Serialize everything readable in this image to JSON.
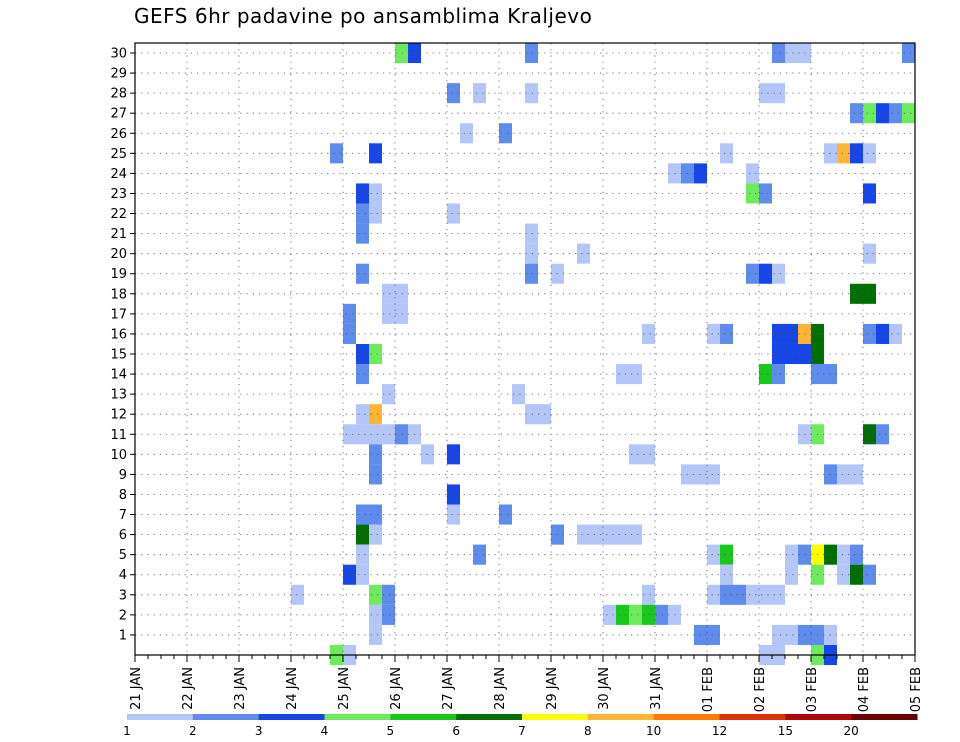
{
  "chart_data": {
    "type": "heatmap",
    "title": "GEFS 6hr padavine po ansamblima Kraljevo",
    "xlabel": "",
    "ylabel": "",
    "x_ticks": [
      "21 JAN",
      "22 JAN",
      "23 JAN",
      "24 JAN",
      "25 JAN",
      "26 JAN",
      "27 JAN",
      "28 JAN",
      "29 JAN",
      "30 JAN",
      "31 JAN",
      "01 FEB",
      "02 FEB",
      "03 FEB",
      "04 FEB",
      "05 FEB"
    ],
    "y_ticks": [
      1,
      2,
      3,
      4,
      5,
      6,
      7,
      8,
      9,
      10,
      11,
      12,
      13,
      14,
      15,
      16,
      17,
      18,
      19,
      20,
      21,
      22,
      23,
      24,
      25,
      26,
      27,
      28,
      29,
      30
    ],
    "ylim": [
      0,
      30
    ],
    "time_steps_per_day": 4,
    "grid": "dotted",
    "colorbar": {
      "labels": [
        "1",
        "2",
        "3",
        "4",
        "5",
        "6",
        "7",
        "8",
        "10",
        "12",
        "15",
        "20"
      ],
      "colors": [
        "#b3c6f7",
        "#5f8bec",
        "#1846e6",
        "#6fea5c",
        "#1cc71c",
        "#036e03",
        "#ffff00",
        "#ffb534",
        "#ff7a00",
        "#e0300a",
        "#b10707",
        "#6c0000"
      ]
    },
    "cells": [
      [
        20,
        30,
        4
      ],
      [
        21,
        30,
        3
      ],
      [
        30,
        30,
        2
      ],
      [
        49,
        30,
        2
      ],
      [
        50,
        30,
        1
      ],
      [
        51,
        30,
        1
      ],
      [
        59,
        30,
        2
      ],
      [
        24,
        28,
        2
      ],
      [
        26,
        28,
        1
      ],
      [
        30,
        28,
        1
      ],
      [
        48,
        28,
        1
      ],
      [
        49,
        28,
        1
      ],
      [
        55,
        27,
        2
      ],
      [
        56,
        27,
        4
      ],
      [
        57,
        27,
        3
      ],
      [
        58,
        27,
        2
      ],
      [
        59,
        27,
        4
      ],
      [
        25,
        26,
        1
      ],
      [
        28,
        26,
        2
      ],
      [
        15,
        25,
        2
      ],
      [
        18,
        25,
        3
      ],
      [
        45,
        25,
        1
      ],
      [
        53,
        25,
        1
      ],
      [
        54,
        25,
        8
      ],
      [
        55,
        25,
        3
      ],
      [
        56,
        25,
        1
      ],
      [
        41,
        24,
        1
      ],
      [
        42,
        24,
        2
      ],
      [
        43,
        24,
        3
      ],
      [
        47,
        24,
        1
      ],
      [
        17,
        23,
        3
      ],
      [
        18,
        23,
        1
      ],
      [
        47,
        23,
        4
      ],
      [
        48,
        23,
        2
      ],
      [
        56,
        23,
        3
      ],
      [
        17,
        22,
        2
      ],
      [
        18,
        22,
        1
      ],
      [
        24,
        22,
        1
      ],
      [
        17,
        21,
        2
      ],
      [
        30,
        21,
        1
      ],
      [
        30,
        20,
        1
      ],
      [
        34,
        20,
        1
      ],
      [
        56,
        20,
        1
      ],
      [
        17,
        19,
        2
      ],
      [
        30,
        19,
        2
      ],
      [
        32,
        19,
        1
      ],
      [
        47,
        19,
        2
      ],
      [
        48,
        19,
        3
      ],
      [
        49,
        19,
        1
      ],
      [
        19,
        18,
        1
      ],
      [
        20,
        18,
        1
      ],
      [
        55,
        18,
        6
      ],
      [
        56,
        18,
        6
      ],
      [
        16,
        17,
        2
      ],
      [
        19,
        17,
        1
      ],
      [
        20,
        17,
        1
      ],
      [
        16,
        16,
        2
      ],
      [
        39,
        16,
        1
      ],
      [
        44,
        16,
        1
      ],
      [
        45,
        16,
        2
      ],
      [
        49,
        16,
        3
      ],
      [
        50,
        16,
        3
      ],
      [
        51,
        16,
        8
      ],
      [
        52,
        16,
        6
      ],
      [
        56,
        16,
        2
      ],
      [
        57,
        16,
        3
      ],
      [
        58,
        16,
        1
      ],
      [
        17,
        15,
        3
      ],
      [
        18,
        15,
        4
      ],
      [
        49,
        15,
        3
      ],
      [
        50,
        15,
        3
      ],
      [
        51,
        15,
        3
      ],
      [
        52,
        15,
        6
      ],
      [
        17,
        14,
        2
      ],
      [
        37,
        14,
        1
      ],
      [
        38,
        14,
        1
      ],
      [
        48,
        14,
        5
      ],
      [
        49,
        14,
        2
      ],
      [
        52,
        14,
        2
      ],
      [
        53,
        14,
        2
      ],
      [
        19,
        13,
        1
      ],
      [
        29,
        13,
        1
      ],
      [
        17,
        12,
        1
      ],
      [
        18,
        12,
        8
      ],
      [
        30,
        12,
        1
      ],
      [
        31,
        12,
        1
      ],
      [
        16,
        11,
        1
      ],
      [
        17,
        11,
        1
      ],
      [
        18,
        11,
        1
      ],
      [
        19,
        11,
        1
      ],
      [
        20,
        11,
        2
      ],
      [
        21,
        11,
        1
      ],
      [
        51,
        11,
        1
      ],
      [
        52,
        11,
        4
      ],
      [
        56,
        11,
        6
      ],
      [
        57,
        11,
        2
      ],
      [
        18,
        10,
        2
      ],
      [
        22,
        10,
        1
      ],
      [
        24,
        10,
        3
      ],
      [
        38,
        10,
        1
      ],
      [
        39,
        10,
        1
      ],
      [
        18,
        9,
        2
      ],
      [
        42,
        9,
        1
      ],
      [
        43,
        9,
        1
      ],
      [
        44,
        9,
        1
      ],
      [
        53,
        9,
        2
      ],
      [
        54,
        9,
        1
      ],
      [
        55,
        9,
        1
      ],
      [
        24,
        8,
        3
      ],
      [
        17,
        7,
        2
      ],
      [
        18,
        7,
        2
      ],
      [
        24,
        7,
        1
      ],
      [
        28,
        7,
        2
      ],
      [
        17,
        6,
        6
      ],
      [
        18,
        6,
        1
      ],
      [
        32,
        6,
        2
      ],
      [
        34,
        6,
        1
      ],
      [
        35,
        6,
        1
      ],
      [
        36,
        6,
        1
      ],
      [
        37,
        6,
        1
      ],
      [
        38,
        6,
        1
      ],
      [
        17,
        5,
        1
      ],
      [
        26,
        5,
        2
      ],
      [
        44,
        5,
        1
      ],
      [
        45,
        5,
        5
      ],
      [
        50,
        5,
        1
      ],
      [
        51,
        5,
        2
      ],
      [
        52,
        5,
        7
      ],
      [
        53,
        5,
        6
      ],
      [
        54,
        5,
        1
      ],
      [
        55,
        5,
        2
      ],
      [
        16,
        4,
        3
      ],
      [
        17,
        4,
        1
      ],
      [
        45,
        4,
        1
      ],
      [
        50,
        4,
        1
      ],
      [
        52,
        4,
        4
      ],
      [
        54,
        4,
        1
      ],
      [
        55,
        4,
        6
      ],
      [
        56,
        4,
        2
      ],
      [
        12,
        3,
        1
      ],
      [
        18,
        3,
        4
      ],
      [
        19,
        3,
        2
      ],
      [
        39,
        3,
        1
      ],
      [
        44,
        3,
        1
      ],
      [
        45,
        3,
        2
      ],
      [
        46,
        3,
        2
      ],
      [
        47,
        3,
        1
      ],
      [
        48,
        3,
        1
      ],
      [
        49,
        3,
        1
      ],
      [
        18,
        2,
        1
      ],
      [
        19,
        2,
        2
      ],
      [
        36,
        2,
        1
      ],
      [
        37,
        2,
        5
      ],
      [
        38,
        2,
        4
      ],
      [
        39,
        2,
        5
      ],
      [
        40,
        2,
        2
      ],
      [
        41,
        2,
        1
      ],
      [
        18,
        1,
        1
      ],
      [
        43,
        1,
        2
      ],
      [
        44,
        1,
        2
      ],
      [
        49,
        1,
        1
      ],
      [
        50,
        1,
        1
      ],
      [
        51,
        1,
        2
      ],
      [
        52,
        1,
        2
      ],
      [
        53,
        1,
        1
      ],
      [
        15,
        0,
        4
      ],
      [
        16,
        0,
        1
      ],
      [
        48,
        0,
        1
      ],
      [
        49,
        0,
        1
      ],
      [
        52,
        0,
        4
      ],
      [
        53,
        0,
        3
      ]
    ]
  }
}
